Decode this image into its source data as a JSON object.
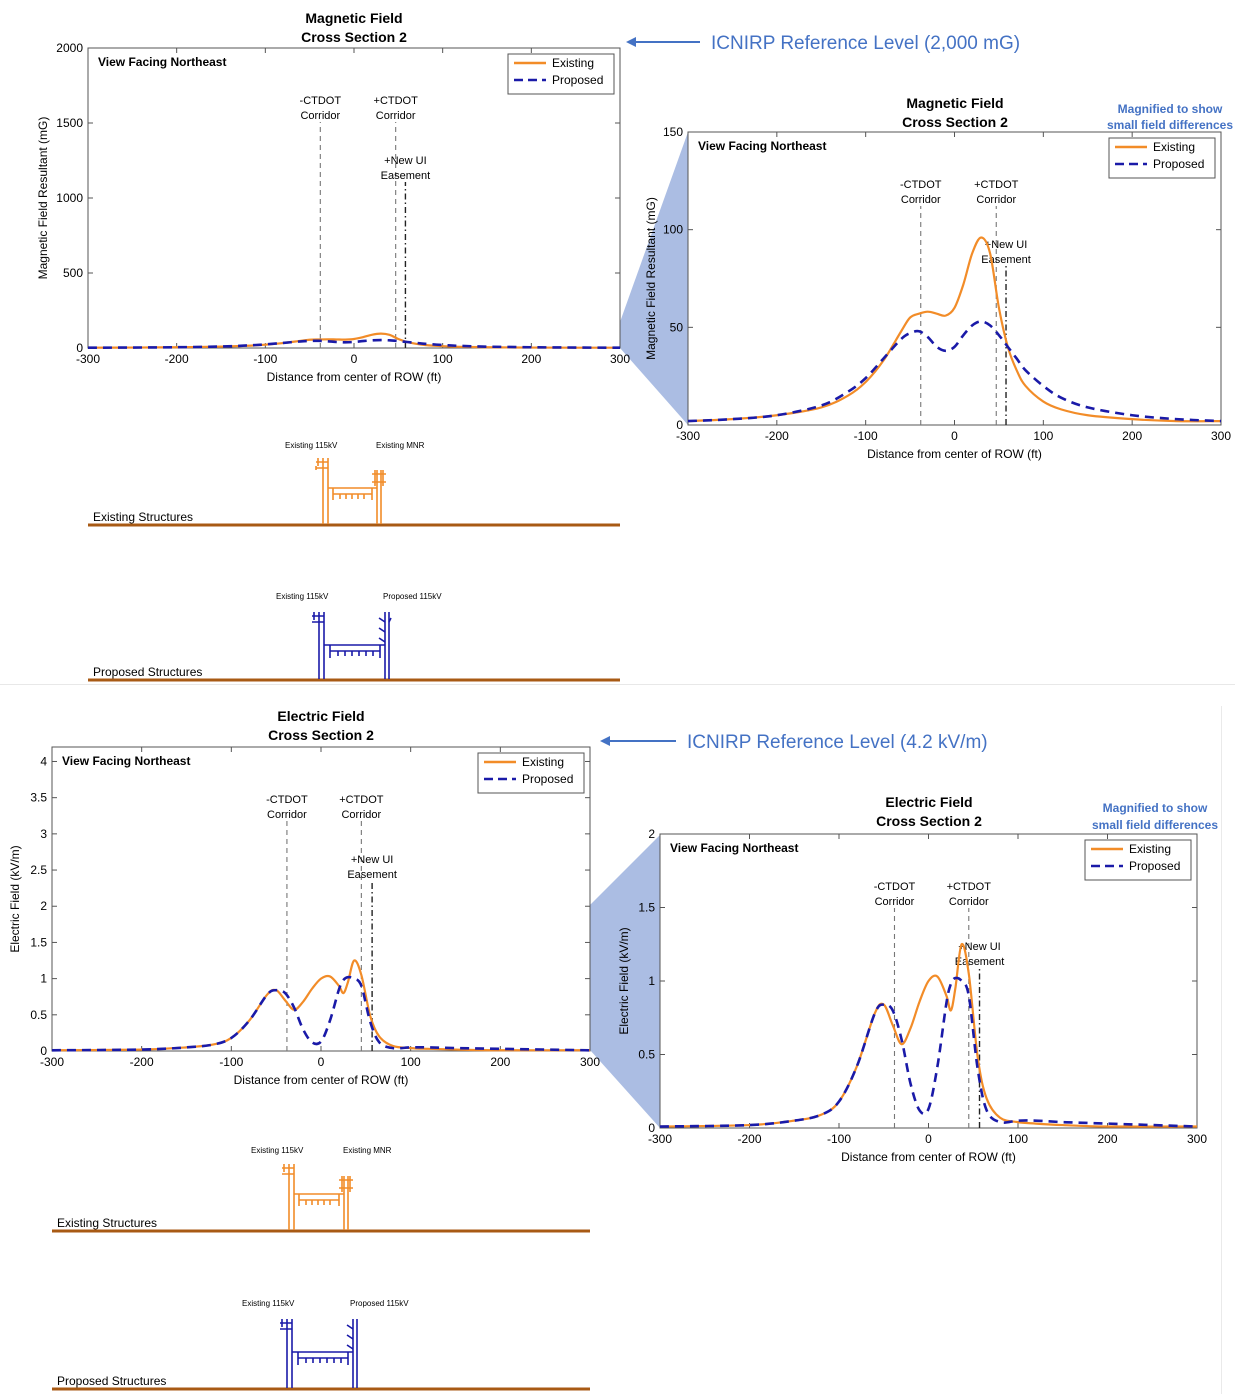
{
  "annotations": {
    "icnirp_magnetic": "ICNIRP Reference Level (2,000 mG)",
    "icnirp_electric": "ICNIRP Reference Level (4.2 kV/m)",
    "magnified_line1": "Magnified to show",
    "magnified_line2": "small field differences"
  },
  "colors": {
    "existing": "#f28c28",
    "proposed": "#1a1aa8",
    "annotation": "#4472c4",
    "magnify_fill": "#a7b9e2",
    "ground": "#a85a14"
  },
  "structures": {
    "existing_label": "Existing Structures",
    "proposed_label": "Proposed Structures",
    "existing_115kv": "Existing 115kV",
    "existing_mnr": "Existing MNR",
    "proposed_115kv": "Proposed 115kV"
  },
  "chart_data": [
    {
      "id": "mag_full",
      "type": "line",
      "title": [
        "Magnetic Field",
        "Cross Section 2"
      ],
      "view_label": "View Facing Northeast",
      "xlabel": "Distance from center of ROW (ft)",
      "ylabel": "Magnetic Field Resultant (mG)",
      "xlim": [
        -300,
        300
      ],
      "ylim": [
        0,
        2000
      ],
      "xticks": [
        "-300",
        "-200",
        "-100",
        "0",
        "100",
        "200",
        "300"
      ],
      "yticks": [
        "0",
        "500",
        "1000",
        "1500",
        "2000"
      ],
      "ytick_values": [
        0,
        500,
        1000,
        1500,
        2000
      ],
      "legend": [
        "Existing",
        "Proposed"
      ],
      "legend_position": "top-right",
      "markers": [
        {
          "x": -38,
          "label": [
            "-CTDOT",
            "Corridor"
          ],
          "style": "dashed"
        },
        {
          "x": 47,
          "label": [
            "+CTDOT",
            "Corridor"
          ],
          "style": "dashed"
        },
        {
          "x": 58,
          "label": [
            "+New UI",
            "Easement"
          ],
          "style": "dashdot"
        }
      ],
      "x": [
        -300,
        -250,
        -200,
        -150,
        -120,
        -100,
        -80,
        -60,
        -50,
        -40,
        -30,
        -20,
        -10,
        0,
        10,
        20,
        30,
        40,
        50,
        60,
        70,
        80,
        100,
        120,
        150,
        200,
        250,
        300
      ],
      "series": [
        {
          "name": "Existing",
          "values": [
            2,
            3,
            5,
            9,
            15,
            22,
            33,
            48,
            55,
            57,
            58,
            57,
            56,
            60,
            72,
            88,
            96,
            88,
            60,
            40,
            28,
            20,
            12,
            8,
            5,
            3,
            2,
            2
          ]
        },
        {
          "name": "Proposed",
          "values": [
            2,
            3,
            5,
            10,
            17,
            24,
            34,
            44,
            47,
            48,
            45,
            40,
            38,
            40,
            46,
            51,
            53,
            51,
            46,
            40,
            34,
            28,
            20,
            14,
            9,
            5,
            3,
            2
          ]
        }
      ]
    },
    {
      "id": "mag_zoom",
      "type": "line",
      "title": [
        "Magnetic Field",
        "Cross Section 2"
      ],
      "view_label": "View Facing Northeast",
      "xlabel": "Distance from center of ROW (ft)",
      "ylabel": "Magnetic Field Resultant (mG)",
      "xlim": [
        -300,
        300
      ],
      "ylim": [
        0,
        150
      ],
      "xticks": [
        "-300",
        "-200",
        "-100",
        "0",
        "100",
        "200",
        "300"
      ],
      "yticks": [
        "0",
        "50",
        "100",
        "150"
      ],
      "ytick_values": [
        0,
        50,
        100,
        150
      ],
      "legend": [
        "Existing",
        "Proposed"
      ],
      "legend_position": "top-right",
      "markers": [
        {
          "x": -38,
          "label": [
            "-CTDOT",
            "Corridor"
          ],
          "style": "dashed"
        },
        {
          "x": 47,
          "label": [
            "+CTDOT",
            "Corridor"
          ],
          "style": "dashed"
        },
        {
          "x": 58,
          "label": [
            "+New UI",
            "Easement"
          ],
          "style": "dashdot"
        }
      ],
      "x": [
        -300,
        -250,
        -200,
        -150,
        -120,
        -100,
        -80,
        -60,
        -50,
        -40,
        -30,
        -20,
        -10,
        0,
        10,
        20,
        30,
        40,
        50,
        60,
        70,
        80,
        100,
        120,
        150,
        200,
        250,
        300
      ],
      "series": [
        {
          "name": "Existing",
          "values": [
            2,
            3,
            5,
            9,
            15,
            22,
            33,
            48,
            55,
            57,
            58,
            57,
            56,
            60,
            72,
            88,
            96,
            88,
            60,
            40,
            28,
            20,
            12,
            8,
            5,
            3,
            2,
            2
          ]
        },
        {
          "name": "Proposed",
          "values": [
            2,
            3,
            5,
            10,
            17,
            24,
            34,
            44,
            47,
            48,
            45,
            40,
            38,
            40,
            46,
            51,
            53,
            51,
            46,
            40,
            34,
            28,
            20,
            14,
            9,
            5,
            3,
            2
          ]
        }
      ]
    },
    {
      "id": "elec_full",
      "type": "line",
      "title": [
        "Electric Field",
        "Cross Section 2"
      ],
      "view_label": "View Facing Northeast",
      "xlabel": "Distance from center of ROW (ft)",
      "ylabel": "Electric Field (kV/m)",
      "xlim": [
        -300,
        300
      ],
      "ylim": [
        0,
        4.2
      ],
      "xticks": [
        "-300",
        "-200",
        "-100",
        "0",
        "100",
        "200",
        "300"
      ],
      "yticks": [
        "0",
        "0.5",
        "1",
        "1.5",
        "2",
        "2.5",
        "3",
        "3.5",
        "4"
      ],
      "ytick_values": [
        0,
        0.5,
        1,
        1.5,
        2,
        2.5,
        3,
        3.5,
        4
      ],
      "legend": [
        "Existing",
        "Proposed"
      ],
      "legend_position": "top-right",
      "markers": [
        {
          "x": -38,
          "label": [
            "-CTDOT",
            "Corridor"
          ],
          "style": "dashed"
        },
        {
          "x": 45,
          "label": [
            "+CTDOT",
            "Corridor"
          ],
          "style": "dashed"
        },
        {
          "x": 57,
          "label": [
            "+New UI",
            "Easement"
          ],
          "style": "dashdot"
        }
      ],
      "x": [
        -300,
        -200,
        -150,
        -120,
        -100,
        -80,
        -60,
        -50,
        -40,
        -30,
        -20,
        -10,
        0,
        10,
        20,
        25,
        30,
        37,
        45,
        55,
        65,
        80,
        100,
        120,
        150,
        200,
        300
      ],
      "series": [
        {
          "name": "Existing",
          "values": [
            0.01,
            0.02,
            0.05,
            0.09,
            0.18,
            0.42,
            0.78,
            0.84,
            0.7,
            0.57,
            0.68,
            0.86,
            1.0,
            1.03,
            0.9,
            0.8,
            0.95,
            1.25,
            1.05,
            0.48,
            0.2,
            0.07,
            0.04,
            0.03,
            0.02,
            0.01,
            0.01
          ]
        },
        {
          "name": "Proposed",
          "values": [
            0.01,
            0.02,
            0.05,
            0.09,
            0.18,
            0.42,
            0.78,
            0.84,
            0.8,
            0.6,
            0.3,
            0.12,
            0.13,
            0.42,
            0.85,
            0.98,
            1.02,
            1.0,
            0.9,
            0.4,
            0.12,
            0.04,
            0.05,
            0.05,
            0.04,
            0.03,
            0.01
          ]
        }
      ]
    },
    {
      "id": "elec_zoom",
      "type": "line",
      "title": [
        "Electric Field",
        "Cross Section 2"
      ],
      "view_label": "View Facing Northeast",
      "xlabel": "Distance from center of ROW (ft)",
      "ylabel": "Electric Field (kV/m)",
      "xlim": [
        -300,
        300
      ],
      "ylim": [
        0,
        2
      ],
      "xticks": [
        "-300",
        "-200",
        "-100",
        "0",
        "100",
        "200",
        "300"
      ],
      "yticks": [
        "0",
        "0.5",
        "1",
        "1.5",
        "2"
      ],
      "ytick_values": [
        0,
        0.5,
        1,
        1.5,
        2
      ],
      "legend": [
        "Existing",
        "Proposed"
      ],
      "legend_position": "top-right",
      "markers": [
        {
          "x": -38,
          "label": [
            "-CTDOT",
            "Corridor"
          ],
          "style": "dashed"
        },
        {
          "x": 45,
          "label": [
            "+CTDOT",
            "Corridor"
          ],
          "style": "dashed"
        },
        {
          "x": 57,
          "label": [
            "+New UI",
            "Easement"
          ],
          "style": "dashdot"
        }
      ],
      "x": [
        -300,
        -200,
        -150,
        -120,
        -100,
        -80,
        -60,
        -50,
        -40,
        -30,
        -20,
        -10,
        0,
        10,
        20,
        25,
        30,
        37,
        45,
        55,
        65,
        80,
        100,
        120,
        150,
        200,
        300
      ],
      "series": [
        {
          "name": "Existing",
          "values": [
            0.01,
            0.02,
            0.05,
            0.09,
            0.18,
            0.42,
            0.78,
            0.84,
            0.7,
            0.57,
            0.68,
            0.86,
            1.0,
            1.03,
            0.9,
            0.8,
            0.95,
            1.25,
            1.05,
            0.48,
            0.2,
            0.07,
            0.04,
            0.03,
            0.02,
            0.01,
            0.01
          ]
        },
        {
          "name": "Proposed",
          "values": [
            0.01,
            0.02,
            0.05,
            0.09,
            0.18,
            0.42,
            0.78,
            0.84,
            0.8,
            0.6,
            0.3,
            0.12,
            0.13,
            0.42,
            0.85,
            0.98,
            1.02,
            1.0,
            0.9,
            0.4,
            0.12,
            0.04,
            0.05,
            0.05,
            0.04,
            0.03,
            0.01
          ]
        }
      ]
    }
  ]
}
